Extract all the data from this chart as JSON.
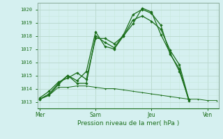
{
  "title": "",
  "xlabel": "Pression niveau de la mer( hPa )",
  "bg_color": "#d5f0f0",
  "grid_major_color": "#b8d8cc",
  "grid_minor_color": "#c8e8dc",
  "line_color": "#1a6e1a",
  "ylim": [
    1012.5,
    1020.5
  ],
  "xlim": [
    -0.1,
    9.6
  ],
  "day_labels": [
    "Mer",
    "Sam",
    "Jeu",
    "Ven"
  ],
  "day_positions": [
    0,
    3,
    6,
    9
  ],
  "yticks": [
    1013,
    1014,
    1015,
    1016,
    1017,
    1018,
    1019,
    1020
  ],
  "line1_x": [
    0,
    0.5,
    1,
    1.5,
    2,
    2.5,
    3,
    3.5,
    4,
    4.5,
    5,
    5.5,
    6,
    6.5,
    7,
    7.5,
    8
  ],
  "line1_y": [
    1013.2,
    1013.6,
    1014.4,
    1015.0,
    1014.4,
    1014.4,
    1018.0,
    1017.5,
    1017.1,
    1018.1,
    1019.6,
    1020.0,
    1019.7,
    1018.8,
    1016.6,
    1015.5,
    1013.1
  ],
  "line2_x": [
    0,
    0.5,
    1,
    1.5,
    2,
    2.5,
    3,
    3.5,
    4,
    4.5,
    5,
    5.5,
    6,
    6.5,
    7,
    7.5,
    8
  ],
  "line2_y": [
    1013.3,
    1013.8,
    1014.5,
    1014.8,
    1015.2,
    1014.7,
    1017.8,
    1017.8,
    1017.4,
    1018.0,
    1019.2,
    1019.5,
    1019.1,
    1018.5,
    1016.9,
    1015.8,
    1013.2
  ],
  "line3_x": [
    0,
    0.5,
    1,
    1.5,
    2,
    2.5,
    3,
    3.5,
    4,
    4.5,
    5,
    5.5,
    6,
    6.5,
    7,
    7.5,
    8
  ],
  "line3_y": [
    1013.2,
    1013.5,
    1014.3,
    1015.0,
    1014.6,
    1015.3,
    1018.3,
    1017.2,
    1017.0,
    1018.0,
    1018.9,
    1020.1,
    1019.8,
    1018.1,
    1016.7,
    1015.3,
    1013.2
  ],
  "line4_x": [
    0,
    0.5,
    1,
    1.5,
    2,
    2.5,
    3,
    3.5,
    4,
    4.5,
    5,
    5.5,
    6,
    6.5,
    7,
    7.5,
    8,
    8.5,
    9,
    9.5
  ],
  "line4_y": [
    1013.2,
    1013.5,
    1014.1,
    1014.1,
    1014.2,
    1014.2,
    1014.1,
    1014.0,
    1014.0,
    1013.9,
    1013.8,
    1013.7,
    1013.6,
    1013.5,
    1013.4,
    1013.3,
    1013.2,
    1013.2,
    1013.1,
    1013.1
  ]
}
